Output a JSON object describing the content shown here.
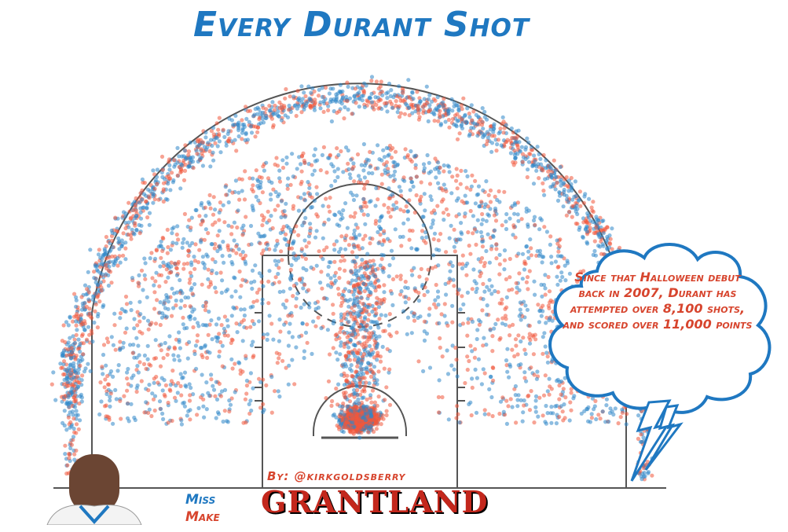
{
  "title": "Every Durant Shot",
  "byline": "By: @kirkgoldsberry",
  "brand": "GRANTLAND",
  "callout": "Since that Halloween debut back in 2007, Durant has attempted over 8,100 shots, and scored over 11,000 points",
  "colors": {
    "miss": "#2f86c8",
    "make": "#f0583d",
    "title": "#1f78c1",
    "court_lines": "#555555",
    "callout_outline": "#1f78c1"
  },
  "chart_data": {
    "type": "scatter",
    "title": "Every Durant Shot",
    "legend": [
      {
        "name": "Miss",
        "color": "#2f86c8"
      },
      {
        "name": "Make",
        "color": "#f0583d"
      }
    ],
    "legend_position": "bottom-left",
    "series": [
      {
        "name": "Miss",
        "density_zones": [
          "three-point arc",
          "mid-range",
          "paint",
          "corners"
        ]
      },
      {
        "name": "Make",
        "density_zones": [
          "rim area",
          "paint",
          "mid-range",
          "three-point arc"
        ]
      }
    ],
    "grid": false
  }
}
